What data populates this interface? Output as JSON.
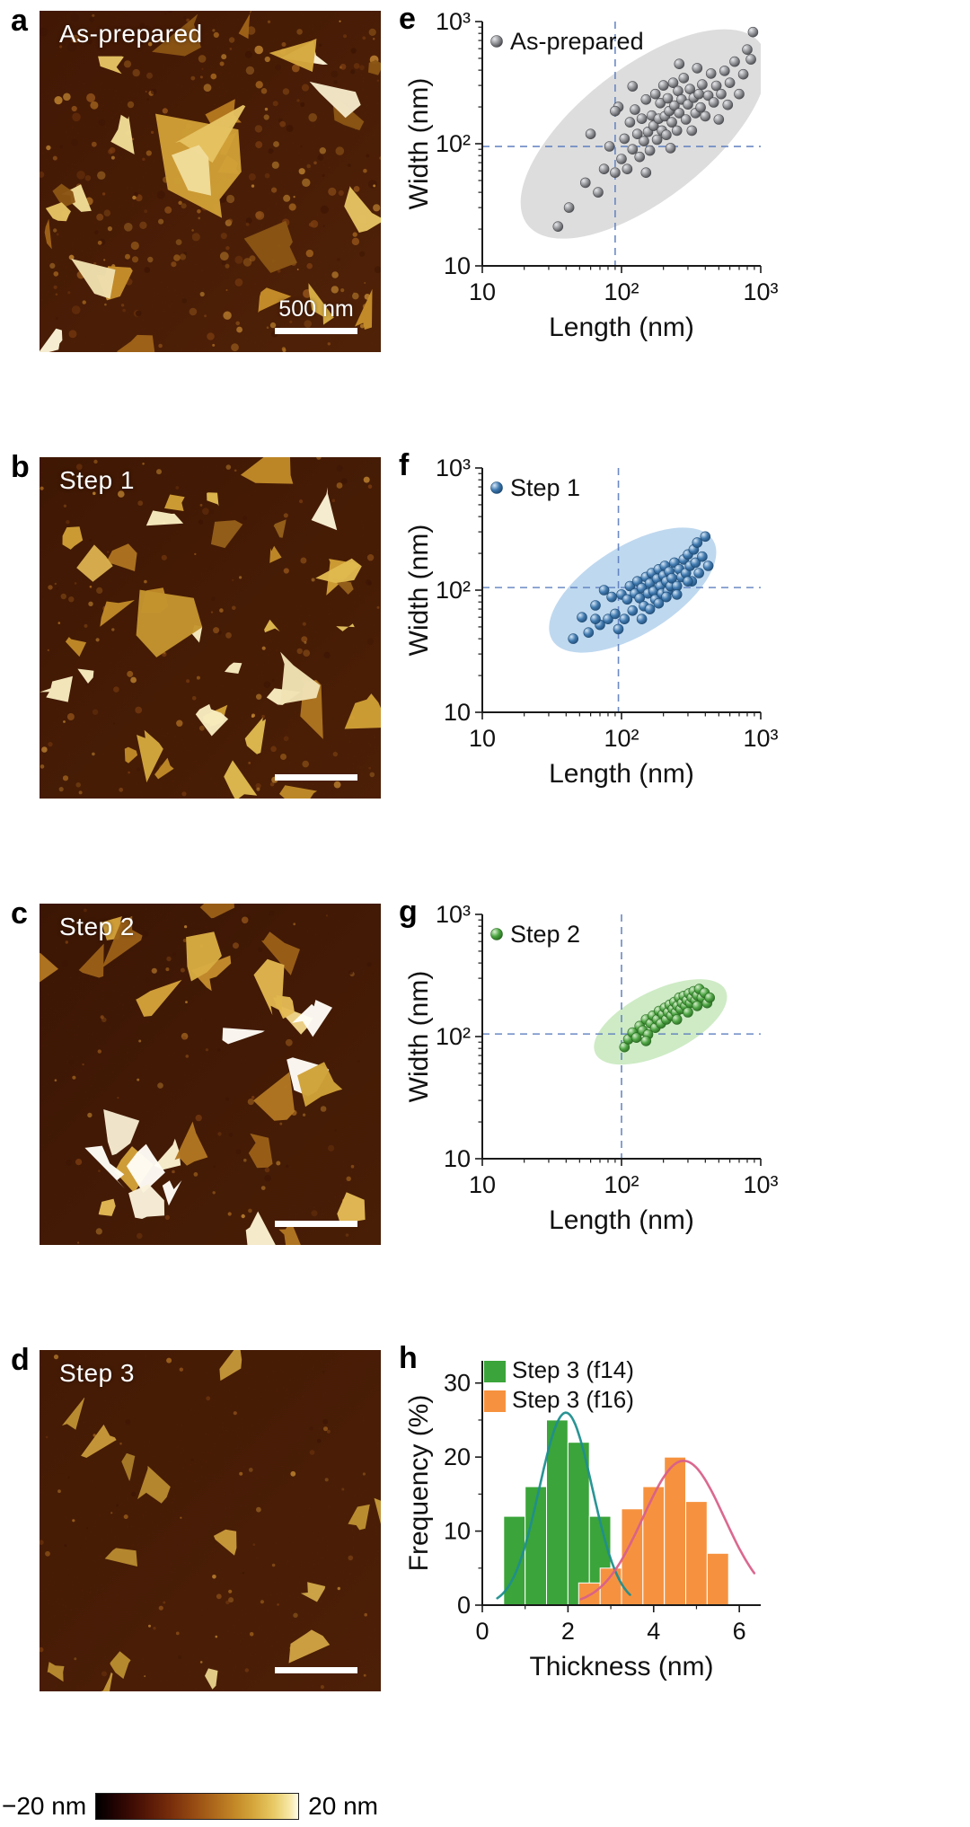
{
  "afm_panels": [
    {
      "letter": "a",
      "title": "As-prepared",
      "scalebar_label": "500 nm"
    },
    {
      "letter": "b",
      "title": "Step 1",
      "scalebar_label": ""
    },
    {
      "letter": "c",
      "title": "Step 2",
      "scalebar_label": ""
    },
    {
      "letter": "d",
      "title": "Step 3",
      "scalebar_label": ""
    }
  ],
  "colorbar": {
    "min_label": "−20 nm",
    "max_label": "20 nm"
  },
  "chart_data": [
    {
      "id": "e",
      "letter": "e",
      "type": "scatter",
      "legend": "As-prepared",
      "xlabel": "Length (nm)",
      "ylabel": "Width (nm)",
      "scale": "log",
      "xlim": [
        10,
        1000
      ],
      "ylim": [
        10,
        1000
      ],
      "xticks": [
        "10",
        "10²",
        "10³"
      ],
      "yticks": [
        "10",
        "10²",
        "10³"
      ],
      "crosshair": [
        90,
        95
      ],
      "point_color": "#8f9094",
      "point_edge": "#46474c",
      "point_hi": "#e8e9ed",
      "ellipse_color": "#d8d8d8",
      "ellipse_opacity": 0.88,
      "ellipse": {
        "cx": 0.58,
        "cy": 0.46,
        "rx": 0.53,
        "ry": 0.27,
        "angle": -38
      },
      "points": [
        [
          35,
          21
        ],
        [
          42,
          30
        ],
        [
          55,
          48
        ],
        [
          60,
          120
        ],
        [
          68,
          40
        ],
        [
          75,
          62
        ],
        [
          82,
          95
        ],
        [
          90,
          58
        ],
        [
          95,
          200
        ],
        [
          100,
          75
        ],
        [
          105,
          110
        ],
        [
          110,
          62
        ],
        [
          115,
          150
        ],
        [
          120,
          90
        ],
        [
          125,
          190
        ],
        [
          130,
          120
        ],
        [
          135,
          78
        ],
        [
          140,
          160
        ],
        [
          145,
          105
        ],
        [
          150,
          230
        ],
        [
          155,
          125
        ],
        [
          160,
          88
        ],
        [
          165,
          170
        ],
        [
          170,
          140
        ],
        [
          175,
          255
        ],
        [
          180,
          108
        ],
        [
          185,
          160
        ],
        [
          190,
          215
        ],
        [
          195,
          128
        ],
        [
          200,
          300
        ],
        [
          205,
          168
        ],
        [
          210,
          118
        ],
        [
          215,
          235
        ],
        [
          220,
          185
        ],
        [
          225,
          92
        ],
        [
          230,
          150
        ],
        [
          235,
          315
        ],
        [
          240,
          205
        ],
        [
          250,
          128
        ],
        [
          255,
          270
        ],
        [
          260,
          178
        ],
        [
          270,
          230
        ],
        [
          280,
          345
        ],
        [
          290,
          158
        ],
        [
          300,
          210
        ],
        [
          310,
          280
        ],
        [
          320,
          128
        ],
        [
          330,
          238
        ],
        [
          340,
          178
        ],
        [
          350,
          415
        ],
        [
          360,
          255
        ],
        [
          370,
          198
        ],
        [
          380,
          305
        ],
        [
          400,
          168
        ],
        [
          420,
          248
        ],
        [
          440,
          375
        ],
        [
          460,
          218
        ],
        [
          480,
          298
        ],
        [
          500,
          158
        ],
        [
          520,
          255
        ],
        [
          550,
          395
        ],
        [
          580,
          208
        ],
        [
          600,
          315
        ],
        [
          650,
          470
        ],
        [
          700,
          255
        ],
        [
          750,
          370
        ],
        [
          800,
          590
        ],
        [
          850,
          490
        ],
        [
          880,
          820
        ],
        [
          260,
          450
        ],
        [
          150,
          58
        ],
        [
          120,
          295
        ],
        [
          90,
          185
        ]
      ]
    },
    {
      "id": "f",
      "letter": "f",
      "type": "scatter",
      "legend": "Step 1",
      "xlabel": "Length (nm)",
      "ylabel": "Width (nm)",
      "scale": "log",
      "xlim": [
        10,
        1000
      ],
      "ylim": [
        10,
        1000
      ],
      "xticks": [
        "10",
        "10²",
        "10³"
      ],
      "yticks": [
        "10",
        "10²",
        "10³"
      ],
      "crosshair": [
        95,
        105
      ],
      "point_color": "#3c77ae",
      "point_edge": "#1c4a75",
      "point_hi": "#d6e7f7",
      "ellipse_color": "#a8cbe9",
      "ellipse_opacity": 0.75,
      "ellipse": {
        "cx": 0.54,
        "cy": 0.5,
        "rx": 0.34,
        "ry": 0.18,
        "angle": -32
      },
      "points": [
        [
          45,
          40
        ],
        [
          52,
          60
        ],
        [
          58,
          45
        ],
        [
          65,
          75
        ],
        [
          70,
          52
        ],
        [
          75,
          100
        ],
        [
          80,
          58
        ],
        [
          85,
          88
        ],
        [
          90,
          64
        ],
        [
          95,
          48
        ],
        [
          100,
          92
        ],
        [
          105,
          58
        ],
        [
          110,
          84
        ],
        [
          115,
          108
        ],
        [
          120,
          68
        ],
        [
          125,
          94
        ],
        [
          130,
          118
        ],
        [
          135,
          86
        ],
        [
          140,
          104
        ],
        [
          145,
          74
        ],
        [
          150,
          128
        ],
        [
          155,
          94
        ],
        [
          160,
          114
        ],
        [
          165,
          138
        ],
        [
          170,
          98
        ],
        [
          175,
          84
        ],
        [
          180,
          124
        ],
        [
          185,
          148
        ],
        [
          190,
          108
        ],
        [
          195,
          94
        ],
        [
          200,
          132
        ],
        [
          205,
          158
        ],
        [
          210,
          118
        ],
        [
          215,
          98
        ],
        [
          220,
          142
        ],
        [
          225,
          108
        ],
        [
          230,
          125
        ],
        [
          240,
          168
        ],
        [
          250,
          108
        ],
        [
          260,
          148
        ],
        [
          270,
          128
        ],
        [
          280,
          178
        ],
        [
          290,
          138
        ],
        [
          300,
          196
        ],
        [
          310,
          158
        ],
        [
          320,
          118
        ],
        [
          330,
          215
        ],
        [
          340,
          168
        ],
        [
          350,
          245
        ],
        [
          360,
          138
        ],
        [
          380,
          188
        ],
        [
          400,
          275
        ],
        [
          420,
          158
        ],
        [
          160,
          70
        ],
        [
          140,
          58
        ],
        [
          185,
          78
        ],
        [
          210,
          88
        ],
        [
          250,
          92
        ],
        [
          300,
          118
        ],
        [
          65,
          58
        ]
      ]
    },
    {
      "id": "g",
      "letter": "g",
      "type": "scatter",
      "legend": "Step 2",
      "xlabel": "Length (nm)",
      "ylabel": "Width (nm)",
      "scale": "log",
      "xlim": [
        10,
        1000
      ],
      "ylim": [
        10,
        1000
      ],
      "xticks": [
        "10",
        "10²",
        "10³"
      ],
      "yticks": [
        "10",
        "10²",
        "10³"
      ],
      "crosshair": [
        100,
        105
      ],
      "point_color": "#49a33f",
      "point_edge": "#27691f",
      "point_hi": "#dcf2d2",
      "ellipse_color": "#b9e2ad",
      "ellipse_opacity": 0.7,
      "ellipse": {
        "cx": 0.64,
        "cy": 0.44,
        "rx": 0.26,
        "ry": 0.13,
        "angle": -26
      },
      "points": [
        [
          105,
          82
        ],
        [
          112,
          95
        ],
        [
          120,
          108
        ],
        [
          128,
          98
        ],
        [
          135,
          122
        ],
        [
          142,
          112
        ],
        [
          150,
          138
        ],
        [
          155,
          104
        ],
        [
          162,
          128
        ],
        [
          168,
          148
        ],
        [
          175,
          118
        ],
        [
          180,
          138
        ],
        [
          186,
          162
        ],
        [
          192,
          128
        ],
        [
          198,
          152
        ],
        [
          205,
          172
        ],
        [
          210,
          138
        ],
        [
          216,
          158
        ],
        [
          222,
          182
        ],
        [
          228,
          148
        ],
        [
          234,
          168
        ],
        [
          240,
          192
        ],
        [
          246,
          158
        ],
        [
          252,
          178
        ],
        [
          260,
          208
        ],
        [
          266,
          168
        ],
        [
          272,
          188
        ],
        [
          280,
          215
        ],
        [
          288,
          178
        ],
        [
          295,
          198
        ],
        [
          305,
          225
        ],
        [
          312,
          188
        ],
        [
          320,
          208
        ],
        [
          330,
          235
        ],
        [
          340,
          198
        ],
        [
          350,
          218
        ],
        [
          362,
          245
        ],
        [
          378,
          208
        ],
        [
          395,
          228
        ],
        [
          412,
          188
        ],
        [
          430,
          208
        ],
        [
          150,
          92
        ],
        [
          250,
          138
        ],
        [
          300,
          158
        ],
        [
          350,
          178
        ]
      ]
    },
    {
      "id": "h",
      "letter": "h",
      "type": "histogram",
      "xlabel": "Thickness (nm)",
      "ylabel": "Frequency (%)",
      "xlim": [
        0,
        6.5
      ],
      "ylim": [
        0,
        33
      ],
      "xticks": [
        0,
        2,
        4,
        6
      ],
      "yticks": [
        0,
        10,
        20,
        30
      ],
      "xticks_minor": [
        1,
        3,
        5
      ],
      "yticks_minor": [
        5,
        15,
        25
      ],
      "series": [
        {
          "name": "Step 3 (f14)",
          "color": "#3ba43a",
          "bin_start": 0.5,
          "bin_width": 0.5,
          "values": [
            12,
            16,
            25,
            22,
            12
          ],
          "curve": {
            "amp": 26,
            "mu": 1.95,
            "sigma": 0.62,
            "color": "#1f8e8e",
            "range": [
              0.35,
              3.45
            ]
          }
        },
        {
          "name": "Step 3 (f16)",
          "color": "#f6923f",
          "bin_start": 2.25,
          "bin_width": 0.5,
          "values": [
            3,
            5,
            13,
            16,
            20,
            14,
            7
          ],
          "curve": {
            "amp": 19.5,
            "mu": 4.7,
            "sigma": 0.95,
            "color": "#d9608a",
            "range": [
              2.3,
              6.35
            ]
          }
        }
      ]
    }
  ]
}
